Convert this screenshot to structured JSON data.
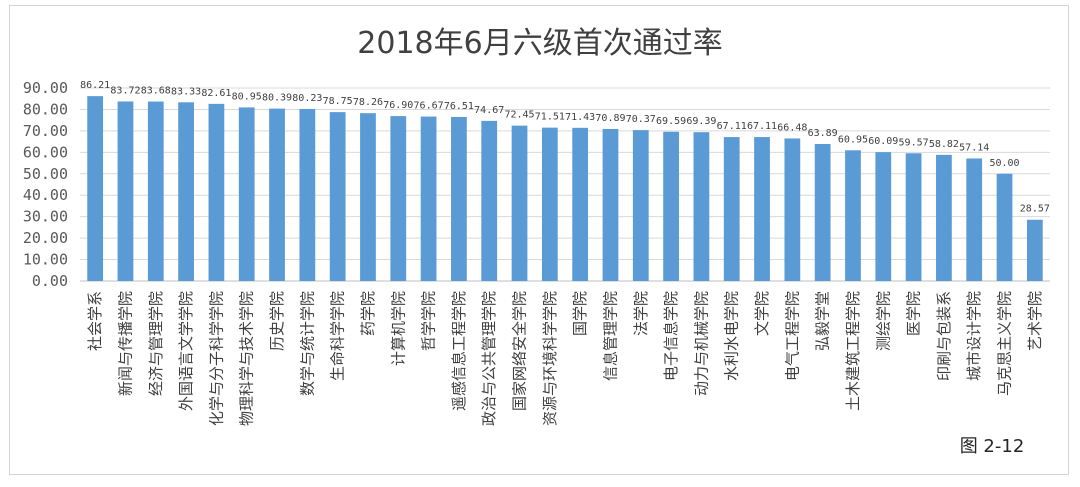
{
  "chart_data": {
    "type": "bar",
    "title": "2018年6月六级首次通过率",
    "figure_label": "图 2-12",
    "ylim": [
      0,
      90
    ],
    "yticks": [
      "0.00",
      "10.00",
      "20.00",
      "30.00",
      "40.00",
      "50.00",
      "60.00",
      "70.00",
      "80.00",
      "90.00"
    ],
    "grid": true,
    "bar_color": "#5b9bd5",
    "categories": [
      "社会学系",
      "新闻与传播学院",
      "经济与管理学院",
      "外国语言文学学院",
      "化学与分子科学学院",
      "物理科学与技术学院",
      "历史学院",
      "数学与统计学院",
      "生命科学学院",
      "药学院",
      "计算机学院",
      "哲学学院",
      "遥感信息工程学院",
      "政治与公共管理学院",
      "国家网络安全学院",
      "资源与环境科学学院",
      "国学院",
      "信息管理学院",
      "法学院",
      "电子信息学院",
      "动力与机械学院",
      "水利水电学院",
      "文学院",
      "电气工程学院",
      "弘毅学堂",
      "土木建筑工程学院",
      "测绘学院",
      "医学院",
      "印刷与包装系",
      "城市设计学院",
      "马克思主义学院",
      "艺术学院"
    ],
    "values": [
      86.21,
      83.72,
      83.68,
      83.33,
      82.61,
      80.95,
      80.39,
      80.23,
      78.75,
      78.26,
      76.9,
      76.67,
      76.51,
      74.67,
      72.45,
      71.51,
      71.43,
      70.89,
      70.37,
      69.59,
      69.39,
      67.11,
      67.11,
      66.48,
      63.89,
      60.95,
      60.09,
      59.57,
      58.82,
      57.14,
      50.0,
      28.57
    ],
    "value_labels": [
      "86.21",
      "83.72",
      "83.68",
      "83.33",
      "82.61",
      "80.95",
      "80.39",
      "80.23",
      "78.75",
      "78.26",
      "76.90",
      "76.67",
      "76.51",
      "74.67",
      "72.45",
      "71.51",
      "71.43",
      "70.89",
      "70.37",
      "69.59",
      "69.39",
      "67.11",
      "67.11",
      "66.48",
      "63.89",
      "60.95",
      "60.09",
      "59.57",
      "58.82",
      "57.14",
      "50.00",
      "28.57"
    ]
  }
}
